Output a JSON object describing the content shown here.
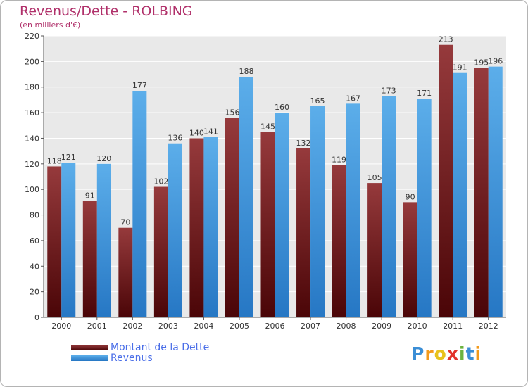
{
  "chart_data": {
    "type": "bar",
    "title": "Revenus/Dette - ROLBING",
    "subtitle": "(en milliers d'€)",
    "categories": [
      "2000",
      "2001",
      "2002",
      "2003",
      "2004",
      "2005",
      "2006",
      "2007",
      "2008",
      "2009",
      "2010",
      "2011",
      "2012"
    ],
    "series": [
      {
        "name": "Montant de la Dette",
        "color": "#7a1a1e",
        "values": [
          118,
          91,
          70,
          102,
          140,
          156,
          145,
          132,
          119,
          105,
          90,
          213,
          195
        ]
      },
      {
        "name": "Revenus",
        "color": "#3d9be0",
        "values": [
          121,
          120,
          177,
          136,
          141,
          188,
          160,
          165,
          167,
          173,
          171,
          191,
          196
        ]
      }
    ],
    "ylim": [
      0,
      220
    ],
    "yticks": [
      0,
      20,
      40,
      60,
      80,
      100,
      120,
      140,
      160,
      180,
      200,
      220
    ],
    "grid": true,
    "legend": "bottom-left"
  },
  "logo": {
    "letters": [
      "P",
      "r",
      "o",
      "x",
      "i",
      "t",
      "i"
    ]
  }
}
